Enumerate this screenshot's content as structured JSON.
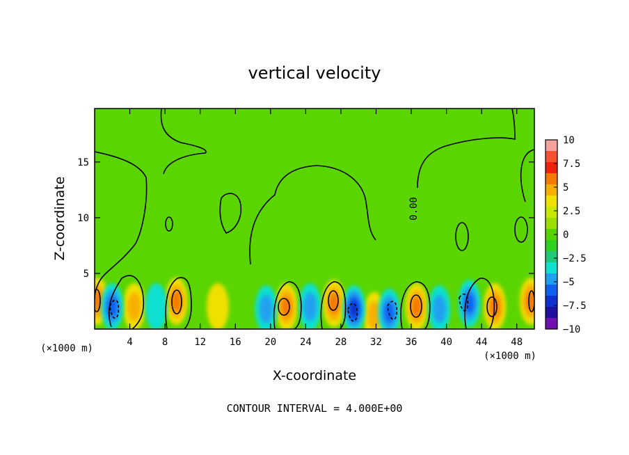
{
  "chart_data": {
    "type": "heatmap",
    "title": "vertical velocity",
    "xlabel": "X-coordinate",
    "ylabel": "Z-coordinate",
    "x_units": "(×1000 m)",
    "y_units": "(×1000 m)",
    "xlim": [
      0,
      50
    ],
    "ylim": [
      0,
      19.8
    ],
    "x_ticks": [
      4,
      8,
      12,
      16,
      20,
      24,
      28,
      32,
      36,
      40,
      44,
      48
    ],
    "y_ticks": [
      5,
      10,
      15
    ],
    "colorbar": {
      "levels": [
        -10,
        -7.5,
        -5,
        -2.5,
        0,
        2.5,
        5,
        7.5,
        10
      ],
      "labels": [
        "10",
        "7.5",
        "5",
        "2.5",
        "0",
        "−2.5",
        "−5",
        "−7.5",
        "−10"
      ],
      "colors": [
        "#f7a0a0",
        "#f85030",
        "#f4200e",
        "#f57a00",
        "#f8b000",
        "#f0e000",
        "#c8e800",
        "#9adf00",
        "#55d400",
        "#30d020",
        "#20c878",
        "#10e0d0",
        "#20a0f0",
        "#1060f0",
        "#1030d0",
        "#2010a0",
        "#7010b0"
      ]
    },
    "contour_label": "0.00",
    "contour_interval_text": "CONTOUR INTERVAL = 4.000E+00",
    "updraft_cores": [
      {
        "x": 0.3,
        "z": 2.5,
        "w": 6.5
      },
      {
        "x": 4.5,
        "z": 2.0,
        "w": 3.0
      },
      {
        "x": 9.3,
        "z": 2.5,
        "w": 6.0
      },
      {
        "x": 14.0,
        "z": 2.0,
        "w": 2.0
      },
      {
        "x": 21.8,
        "z": 2.0,
        "w": 6.0
      },
      {
        "x": 27.2,
        "z": 2.3,
        "w": 6.0
      },
      {
        "x": 31.8,
        "z": 1.2,
        "w": 4.5
      },
      {
        "x": 36.6,
        "z": 2.0,
        "w": 6.5
      },
      {
        "x": 45.5,
        "z": 2.0,
        "w": 6.0
      },
      {
        "x": 49.6,
        "z": 2.5,
        "w": 6.5
      }
    ],
    "downdraft_cores": [
      {
        "x": 2.0,
        "z": 2.0,
        "w": -6.0
      },
      {
        "x": 7.0,
        "z": 2.0,
        "w": -2.5
      },
      {
        "x": 19.5,
        "z": 1.8,
        "w": -4.0
      },
      {
        "x": 24.5,
        "z": 2.0,
        "w": -4.5
      },
      {
        "x": 29.5,
        "z": 1.8,
        "w": -7.0
      },
      {
        "x": 33.5,
        "z": 1.5,
        "w": -6.0
      },
      {
        "x": 39.2,
        "z": 1.8,
        "w": -4.5
      },
      {
        "x": 42.6,
        "z": 2.3,
        "w": -5.0
      }
    ]
  }
}
